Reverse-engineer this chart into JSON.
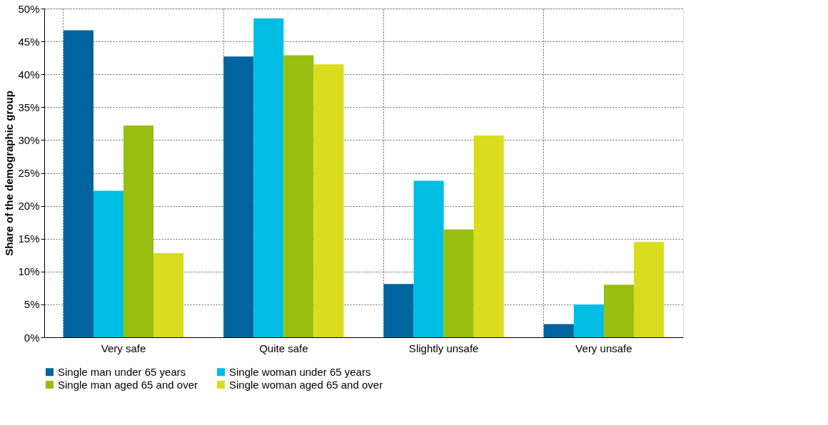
{
  "chart_data": {
    "type": "bar",
    "ylabel": "Share of the demographic group",
    "categories": [
      "Very safe",
      "Quite safe",
      "Slightly unsafe",
      "Very unsafe"
    ],
    "series": [
      {
        "name": "Single man under 65 years",
        "color": "#00649f",
        "values": [
          46.7,
          42.7,
          8.1,
          2.0
        ]
      },
      {
        "name": "Single woman under 65 years",
        "color": "#00bde3",
        "values": [
          22.3,
          48.5,
          23.8,
          5.0
        ]
      },
      {
        "name": "Single man aged 65 and over",
        "color": "#97bf0f",
        "values": [
          32.2,
          42.9,
          16.4,
          8.0
        ]
      },
      {
        "name": "Single woman aged 65 and over",
        "color": "#dadc1e",
        "values": [
          12.8,
          41.5,
          30.7,
          14.5
        ]
      }
    ],
    "ylim": [
      0,
      50
    ],
    "yticks": [
      {
        "value": 0,
        "label": "0%"
      },
      {
        "value": 5,
        "label": "5%"
      },
      {
        "value": 10,
        "label": "10%"
      },
      {
        "value": 15,
        "label": "15%"
      },
      {
        "value": 20,
        "label": "20%"
      },
      {
        "value": 25,
        "label": "25%"
      },
      {
        "value": 30,
        "label": "30%"
      },
      {
        "value": 35,
        "label": "35%"
      },
      {
        "value": 40,
        "label": "40%"
      },
      {
        "value": 45,
        "label": "45%"
      },
      {
        "value": 50,
        "label": "50%"
      }
    ],
    "grid": true,
    "legend": "bottom"
  }
}
